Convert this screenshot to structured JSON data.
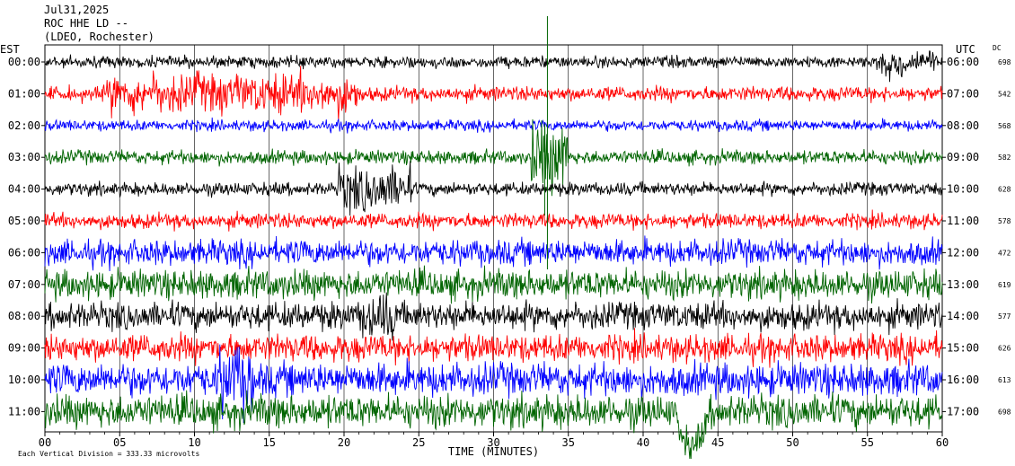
{
  "header": {
    "date": "Jul31,2025",
    "station": "ROC HHE LD --",
    "network": "(LDEO, Rochester)"
  },
  "chart_data": {
    "type": "line",
    "title": "Jul31,2025",
    "left_axis_label": "EST",
    "right_axis_label": "UTC",
    "dc_label": "DC",
    "xlabel": "TIME (MINUTES)",
    "xlim": [
      0,
      60
    ],
    "x_ticks": [
      "00",
      "05",
      "10",
      "15",
      "20",
      "25",
      "30",
      "35",
      "40",
      "45",
      "50",
      "55",
      "60"
    ],
    "grid": "vertical",
    "footer": "Each Vertical Division =  333.33 microvolts",
    "traces": [
      {
        "est": "00:00",
        "utc": "06:00",
        "dc": "698",
        "color": "#000000"
      },
      {
        "est": "01:00",
        "utc": "07:00",
        "dc": "542",
        "color": "#ff0000"
      },
      {
        "est": "02:00",
        "utc": "08:00",
        "dc": "568",
        "color": "#0000ff"
      },
      {
        "est": "03:00",
        "utc": "09:00",
        "dc": "582",
        "color": "#006400"
      },
      {
        "est": "04:00",
        "utc": "10:00",
        "dc": "628",
        "color": "#000000"
      },
      {
        "est": "05:00",
        "utc": "11:00",
        "dc": "578",
        "color": "#ff0000"
      },
      {
        "est": "06:00",
        "utc": "12:00",
        "dc": "472",
        "color": "#0000ff"
      },
      {
        "est": "07:00",
        "utc": "13:00",
        "dc": "619",
        "color": "#006400"
      },
      {
        "est": "08:00",
        "utc": "14:00",
        "dc": "577",
        "color": "#000000"
      },
      {
        "est": "09:00",
        "utc": "15:00",
        "dc": "626",
        "color": "#ff0000"
      },
      {
        "est": "10:00",
        "utc": "16:00",
        "dc": "613",
        "color": "#0000ff"
      },
      {
        "est": "11:00",
        "utc": "17:00",
        "dc": "698",
        "color": "#006400"
      }
    ]
  }
}
